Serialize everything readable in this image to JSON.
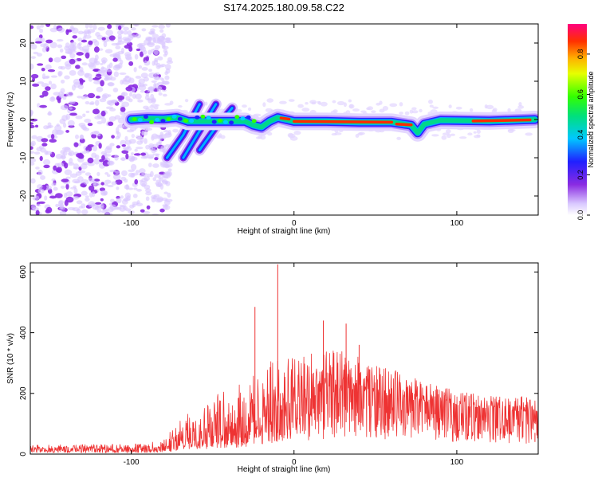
{
  "title": "S174.2025.180.09.58.C22",
  "chart_data": [
    {
      "type": "heatmap",
      "xlabel": "Height of straight line (km)",
      "ylabel": "Frequency (Hz)",
      "xlim": [
        -162,
        150
      ],
      "ylim": [
        -25,
        25
      ],
      "xticks": [
        -100,
        0,
        100
      ],
      "xtick_labels": [
        "-100",
        "0",
        "100"
      ],
      "yticks": [
        -20,
        -10,
        0,
        10,
        20
      ],
      "ytick_labels": [
        "-20",
        "-10",
        "0",
        "10",
        "20"
      ],
      "colorbar": {
        "label": "Normalized spectral amplitude",
        "range": [
          0,
          0.95
        ],
        "ticks": [
          0,
          0.2,
          0.4,
          0.6,
          0.8
        ],
        "tick_labels": [
          "0.0",
          "0.2",
          "0.4",
          "0.6",
          "0.8"
        ],
        "colormap": "rainbow (violet to magenta-red)"
      },
      "noise_region_x": [
        -162,
        -80
      ],
      "ridge": {
        "description": "dominant spectral ridge, frequency vs height",
        "points": [
          [
            -100,
            0
          ],
          [
            -90,
            0.3
          ],
          [
            -80,
            0.2
          ],
          [
            -72,
            0.5
          ],
          [
            -65,
            -0.5
          ],
          [
            -30,
            -0.5
          ],
          [
            -25,
            -1.5
          ],
          [
            -20,
            -2
          ],
          [
            -15,
            -0.5
          ],
          [
            -10,
            0.5
          ],
          [
            -5,
            0
          ],
          [
            0,
            -0.5
          ],
          [
            20,
            -0.5
          ],
          [
            40,
            -0.7
          ],
          [
            60,
            -0.7
          ],
          [
            72,
            -1.5
          ],
          [
            76,
            -3.5
          ],
          [
            80,
            -1.2
          ],
          [
            90,
            -0.2
          ],
          [
            120,
            -0.4
          ],
          [
            148,
            0
          ]
        ]
      },
      "dispersive_branches": [
        {
          "points": [
            [
              -78,
              -10
            ],
            [
              -68,
              -4
            ],
            [
              -58,
              4
            ]
          ]
        },
        {
          "points": [
            [
              -68,
              -10
            ],
            [
              -58,
              -3
            ],
            [
              -48,
              4
            ]
          ]
        },
        {
          "points": [
            [
              -58,
              -8
            ],
            [
              -48,
              -2
            ],
            [
              -38,
              3
            ]
          ]
        }
      ]
    },
    {
      "type": "line",
      "xlabel": "Height of straight line (km)",
      "ylabel": "SNR (10 * v/v)",
      "xlim": [
        -162,
        150
      ],
      "ylim": [
        0,
        630
      ],
      "xticks": [
        -100,
        0,
        100
      ],
      "xtick_labels": [
        "-100",
        "0",
        "100"
      ],
      "yticks": [
        0,
        200,
        400,
        600
      ],
      "ytick_labels": [
        "0",
        "200",
        "400",
        "600"
      ],
      "color": "#ee3333",
      "envelope": {
        "description": "approximate baseline and peak envelope of the SNR trace",
        "x": [
          -162,
          -120,
          -90,
          -80,
          -70,
          -60,
          -50,
          -40,
          -30,
          -20,
          -10,
          0,
          10,
          20,
          30,
          40,
          50,
          60,
          70,
          80,
          90,
          100,
          110,
          120,
          130,
          140,
          150
        ],
        "base": [
          18,
          17,
          18,
          20,
          40,
          60,
          75,
          80,
          90,
          120,
          140,
          160,
          180,
          200,
          210,
          210,
          200,
          190,
          180,
          170,
          165,
          160,
          155,
          150,
          145,
          140,
          140
        ],
        "peak": [
          30,
          32,
          35,
          55,
          110,
          160,
          200,
          210,
          240,
          290,
          320,
          330,
          350,
          340,
          350,
          320,
          290,
          280,
          260,
          240,
          220,
          210,
          200,
          195,
          190,
          190,
          180
        ]
      },
      "spikes": [
        {
          "x": -24,
          "y": 485
        },
        {
          "x": -10,
          "y": 625
        },
        {
          "x": 18,
          "y": 440
        },
        {
          "x": 32,
          "y": 430
        },
        {
          "x": 40,
          "y": 360
        },
        {
          "x": 148,
          "y": 40
        }
      ]
    }
  ]
}
